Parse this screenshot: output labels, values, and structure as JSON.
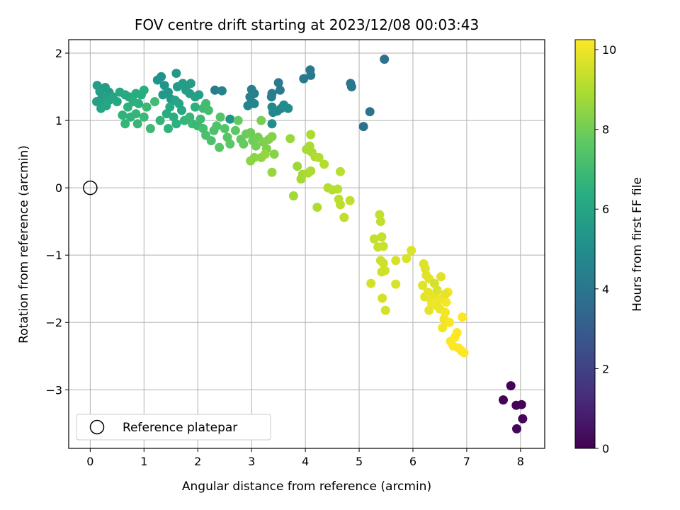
{
  "chart_data": {
    "type": "scatter",
    "title": "FOV centre drift starting at 2023/12/08 00:03:43",
    "xlabel": "Angular distance from reference (arcmin)",
    "ylabel": "Rotation from reference (arcmin)",
    "xlim": [
      -0.4,
      8.45
    ],
    "ylim": [
      -3.87,
      2.2
    ],
    "xticks": [
      0,
      1,
      2,
      3,
      4,
      5,
      6,
      7,
      8
    ],
    "yticks": [
      -3,
      -2,
      -1,
      0,
      1,
      2
    ],
    "grid": true,
    "colormap": "viridis",
    "colorbar": {
      "label": "Hours from first FF file",
      "range": [
        0,
        10.25
      ],
      "ticks": [
        0,
        2,
        4,
        6,
        8,
        10
      ]
    },
    "legend": {
      "position": "lower-left",
      "entries": [
        "Reference platepar"
      ]
    },
    "reference_point": {
      "x": 0,
      "y": 0
    },
    "points": [
      [
        7.82,
        -2.94,
        0.05
      ],
      [
        7.68,
        -3.15,
        0.08
      ],
      [
        7.92,
        -3.23,
        0.1
      ],
      [
        8.02,
        -3.22,
        0.12
      ],
      [
        8.04,
        -3.43,
        0.14
      ],
      [
        7.93,
        -3.58,
        0.16
      ],
      [
        5.47,
        1.91,
        3.8
      ],
      [
        5.08,
        0.91,
        3.85
      ],
      [
        5.2,
        1.13,
        3.9
      ],
      [
        4.84,
        1.55,
        3.95
      ],
      [
        4.86,
        1.5,
        4.0
      ],
      [
        4.09,
        1.75,
        4.05
      ],
      [
        4.1,
        1.67,
        4.1
      ],
      [
        3.97,
        1.62,
        4.15
      ],
      [
        3.5,
        1.56,
        4.2
      ],
      [
        3.53,
        1.45,
        4.25
      ],
      [
        3.38,
        1.4,
        4.3
      ],
      [
        3.37,
        1.35,
        4.35
      ],
      [
        3.0,
        1.46,
        4.4
      ],
      [
        3.05,
        1.4,
        4.45
      ],
      [
        2.97,
        1.35,
        4.5
      ],
      [
        3.0,
        1.27,
        4.55
      ],
      [
        2.93,
        1.22,
        4.6
      ],
      [
        3.05,
        1.25,
        4.65
      ],
      [
        3.38,
        1.2,
        4.7
      ],
      [
        3.4,
        1.12,
        4.75
      ],
      [
        3.48,
        1.14,
        4.8
      ],
      [
        3.55,
        1.18,
        4.85
      ],
      [
        3.6,
        1.23,
        4.9
      ],
      [
        3.68,
        1.18,
        4.95
      ],
      [
        3.38,
        0.95,
        5.0
      ],
      [
        2.32,
        1.45,
        4.3
      ],
      [
        2.45,
        1.44,
        4.5
      ],
      [
        2.6,
        1.02,
        5.2
      ],
      [
        0.13,
        1.52,
        5.6
      ],
      [
        0.28,
        1.49,
        5.6
      ],
      [
        0.35,
        1.42,
        5.65
      ],
      [
        0.18,
        1.43,
        5.7
      ],
      [
        0.22,
        1.35,
        5.75
      ],
      [
        0.12,
        1.28,
        5.8
      ],
      [
        0.25,
        1.25,
        5.85
      ],
      [
        0.35,
        1.3,
        5.9
      ],
      [
        0.42,
        1.35,
        5.95
      ],
      [
        0.2,
        1.18,
        6.0
      ],
      [
        0.3,
        1.22,
        6.05
      ],
      [
        0.5,
        1.28,
        6.1
      ],
      [
        0.55,
        1.42,
        6.15
      ],
      [
        0.65,
        1.38,
        6.2
      ],
      [
        0.72,
        1.35,
        6.25
      ],
      [
        0.85,
        1.4,
        6.3
      ],
      [
        0.95,
        1.38,
        6.35
      ],
      [
        1.0,
        1.45,
        6.4
      ],
      [
        0.8,
        1.28,
        6.45
      ],
      [
        0.9,
        1.25,
        6.5
      ],
      [
        0.7,
        1.2,
        6.55
      ],
      [
        0.6,
        1.08,
        6.6
      ],
      [
        0.75,
        1.05,
        6.65
      ],
      [
        0.85,
        1.1,
        6.7
      ],
      [
        0.65,
        0.95,
        6.75
      ],
      [
        0.88,
        0.95,
        6.8
      ],
      [
        1.0,
        1.05,
        6.85
      ],
      [
        1.05,
        1.2,
        6.9
      ],
      [
        1.12,
        0.88,
        6.95
      ],
      [
        1.2,
        1.28,
        7.0
      ],
      [
        1.25,
        1.6,
        5.3
      ],
      [
        1.32,
        1.65,
        5.2
      ],
      [
        1.38,
        1.52,
        5.3
      ],
      [
        1.45,
        1.42,
        5.4
      ],
      [
        1.35,
        1.38,
        5.45
      ],
      [
        1.5,
        1.32,
        5.5
      ],
      [
        1.62,
        1.5,
        5.55
      ],
      [
        1.6,
        1.7,
        5.5
      ],
      [
        1.72,
        1.55,
        5.6
      ],
      [
        1.78,
        1.45,
        5.65
      ],
      [
        1.85,
        1.4,
        5.7
      ],
      [
        1.95,
        1.35,
        5.75
      ],
      [
        2.02,
        1.38,
        5.8
      ],
      [
        1.87,
        1.55,
        5.6
      ],
      [
        1.58,
        1.3,
        5.9
      ],
      [
        1.65,
        1.25,
        6.0
      ],
      [
        1.7,
        1.15,
        6.1
      ],
      [
        1.48,
        1.2,
        6.2
      ],
      [
        1.42,
        1.1,
        6.3
      ],
      [
        1.55,
        1.05,
        6.4
      ],
      [
        1.6,
        0.95,
        6.5
      ],
      [
        1.45,
        0.88,
        6.6
      ],
      [
        1.3,
        1.0,
        6.7
      ],
      [
        1.75,
        1.0,
        6.75
      ],
      [
        1.85,
        1.05,
        6.8
      ],
      [
        1.9,
        0.95,
        6.85
      ],
      [
        2.0,
        0.92,
        6.9
      ],
      [
        2.05,
        1.02,
        6.95
      ],
      [
        2.1,
        1.18,
        7.0
      ],
      [
        2.15,
        1.25,
        7.05
      ],
      [
        2.2,
        1.15,
        7.1
      ],
      [
        1.95,
        1.2,
        6.5
      ],
      [
        2.1,
        0.88,
        7.15
      ],
      [
        2.15,
        0.78,
        7.2
      ],
      [
        2.25,
        0.7,
        7.25
      ],
      [
        2.3,
        0.85,
        7.3
      ],
      [
        2.35,
        0.92,
        7.35
      ],
      [
        2.42,
        1.05,
        7.4
      ],
      [
        2.5,
        0.88,
        7.45
      ],
      [
        2.55,
        0.75,
        7.5
      ],
      [
        2.4,
        0.6,
        7.55
      ],
      [
        2.6,
        0.65,
        7.6
      ],
      [
        2.7,
        0.85,
        7.65
      ],
      [
        2.75,
        1.0,
        7.7
      ],
      [
        2.8,
        0.72,
        7.75
      ],
      [
        2.85,
        0.65,
        7.8
      ],
      [
        2.9,
        0.8,
        7.85
      ],
      [
        2.98,
        0.82,
        7.9
      ],
      [
        3.02,
        0.7,
        7.95
      ],
      [
        3.08,
        0.62,
        8.0
      ],
      [
        3.12,
        0.75,
        8.05
      ],
      [
        3.18,
        1.0,
        8.1
      ],
      [
        3.22,
        0.68,
        8.15
      ],
      [
        3.28,
        0.58,
        8.2
      ],
      [
        3.32,
        0.72,
        8.25
      ],
      [
        3.38,
        0.76,
        8.3
      ],
      [
        3.42,
        0.5,
        8.35
      ],
      [
        3.05,
        0.45,
        8.4
      ],
      [
        2.98,
        0.4,
        8.45
      ],
      [
        3.18,
        0.45,
        8.5
      ],
      [
        3.25,
        0.5,
        8.55
      ],
      [
        3.38,
        0.23,
        8.6
      ],
      [
        3.72,
        0.73,
        8.65
      ],
      [
        3.85,
        0.32,
        8.7
      ],
      [
        3.78,
        -0.12,
        8.75
      ],
      [
        3.95,
        0.2,
        8.8
      ],
      [
        3.92,
        0.13,
        8.82
      ],
      [
        4.02,
        0.57,
        8.85
      ],
      [
        4.08,
        0.62,
        8.87
      ],
      [
        4.1,
        0.79,
        8.9
      ],
      [
        4.12,
        0.53,
        8.92
      ],
      [
        4.05,
        0.22,
        8.95
      ],
      [
        4.1,
        0.25,
        8.97
      ],
      [
        4.18,
        0.46,
        9.0
      ],
      [
        4.22,
        -0.29,
        9.02
      ],
      [
        4.25,
        0.45,
        9.05
      ],
      [
        4.35,
        0.35,
        9.07
      ],
      [
        4.42,
        0.0,
        9.1
      ],
      [
        4.5,
        -0.03,
        9.12
      ],
      [
        4.6,
        -0.02,
        9.15
      ],
      [
        4.65,
        0.24,
        9.17
      ],
      [
        4.62,
        -0.17,
        9.2
      ],
      [
        4.65,
        -0.25,
        9.22
      ],
      [
        4.72,
        -0.44,
        9.25
      ],
      [
        4.83,
        -0.19,
        9.27
      ],
      [
        5.38,
        -0.4,
        9.3
      ],
      [
        5.4,
        -0.5,
        9.32
      ],
      [
        5.28,
        -0.76,
        9.35
      ],
      [
        5.42,
        -0.73,
        9.37
      ],
      [
        5.35,
        -0.88,
        9.4
      ],
      [
        5.45,
        -0.87,
        9.42
      ],
      [
        5.4,
        -1.08,
        9.45
      ],
      [
        5.45,
        -1.12,
        9.47
      ],
      [
        5.42,
        -1.25,
        9.5
      ],
      [
        5.48,
        -1.23,
        9.52
      ],
      [
        5.22,
        -1.42,
        9.55
      ],
      [
        5.43,
        -1.64,
        9.57
      ],
      [
        5.49,
        -1.82,
        9.6
      ],
      [
        5.68,
        -1.08,
        9.62
      ],
      [
        5.68,
        -1.43,
        9.65
      ],
      [
        5.88,
        -1.05,
        9.67
      ],
      [
        5.97,
        -0.93,
        9.7
      ],
      [
        6.2,
        -1.13,
        9.72
      ],
      [
        6.23,
        -1.2,
        9.75
      ],
      [
        6.18,
        -1.45,
        9.77
      ],
      [
        6.25,
        -1.3,
        9.8
      ],
      [
        6.3,
        -1.35,
        9.82
      ],
      [
        6.22,
        -1.62,
        9.85
      ],
      [
        6.28,
        -1.55,
        9.87
      ],
      [
        6.3,
        -1.82,
        9.9
      ],
      [
        6.35,
        -1.68,
        9.92
      ],
      [
        6.4,
        -1.6,
        9.95
      ],
      [
        6.45,
        -1.75,
        9.97
      ],
      [
        6.5,
        -1.8,
        10.0
      ],
      [
        6.52,
        -1.65,
        10.02
      ],
      [
        6.55,
        -2.08,
        10.05
      ],
      [
        6.58,
        -1.95,
        10.07
      ],
      [
        6.6,
        -1.85,
        10.1
      ],
      [
        6.62,
        -1.7,
        10.12
      ],
      [
        6.65,
        -1.55,
        10.15
      ],
      [
        6.68,
        -2.0,
        10.17
      ],
      [
        6.7,
        -2.28,
        10.2
      ],
      [
        6.75,
        -2.35,
        10.22
      ],
      [
        6.78,
        -2.22,
        10.25
      ],
      [
        6.82,
        -2.15,
        10.25
      ],
      [
        6.85,
        -2.38,
        10.25
      ],
      [
        6.9,
        -2.42,
        10.25
      ],
      [
        6.92,
        -1.92,
        10.25
      ],
      [
        6.95,
        -2.45,
        10.25
      ],
      [
        6.4,
        -1.42,
        9.6
      ],
      [
        6.45,
        -1.52,
        9.7
      ],
      [
        6.52,
        -1.32,
        9.8
      ],
      [
        6.6,
        -1.58,
        9.9
      ],
      [
        6.35,
        -1.72,
        10.0
      ]
    ]
  }
}
